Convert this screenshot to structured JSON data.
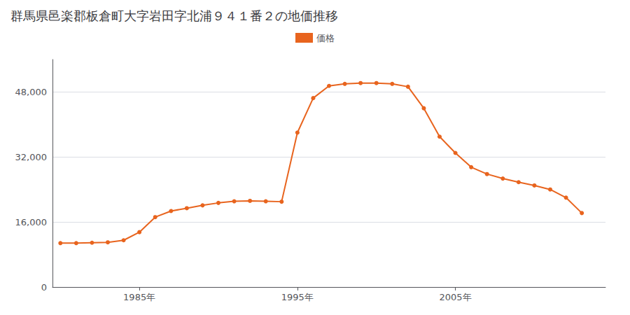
{
  "chart_data": {
    "type": "line",
    "title": "群馬県邑楽郡板倉町大字岩田字北浦９４１番２の地価推移",
    "x": [
      1980,
      1981,
      1982,
      1983,
      1984,
      1985,
      1986,
      1987,
      1988,
      1989,
      1990,
      1991,
      1992,
      1993,
      1994,
      1995,
      1996,
      1997,
      1998,
      1999,
      2000,
      2001,
      2002,
      2003,
      2004,
      2005,
      2006,
      2007,
      2008,
      2009,
      2010,
      2011,
      2012,
      2013
    ],
    "series": [
      {
        "name": "価格",
        "color": "#e8641e",
        "marker": "circle",
        "values": [
          10800,
          10800,
          10900,
          11000,
          11500,
          13500,
          17200,
          18700,
          19400,
          20100,
          20700,
          21100,
          21200,
          21100,
          21000,
          38000,
          46500,
          49500,
          50000,
          50200,
          50200,
          50000,
          49300,
          44000,
          37000,
          33000,
          29500,
          27800,
          26700,
          25800,
          25000,
          24000,
          22000,
          18200
        ]
      }
    ],
    "xlim": [
      1979.5,
      2014.5
    ],
    "xticks": [
      {
        "value": 1985,
        "label": "1985年"
      },
      {
        "value": 1995,
        "label": "1995年"
      },
      {
        "value": 2005,
        "label": "2005年"
      }
    ],
    "ylim": [
      0,
      56000
    ],
    "yticks": [
      0,
      {
        "value": 16000,
        "label": "16,000"
      },
      {
        "value": 32000,
        "label": "32,000"
      },
      {
        "value": 48000,
        "label": "48,000"
      }
    ],
    "grid": true,
    "legend": "top"
  }
}
